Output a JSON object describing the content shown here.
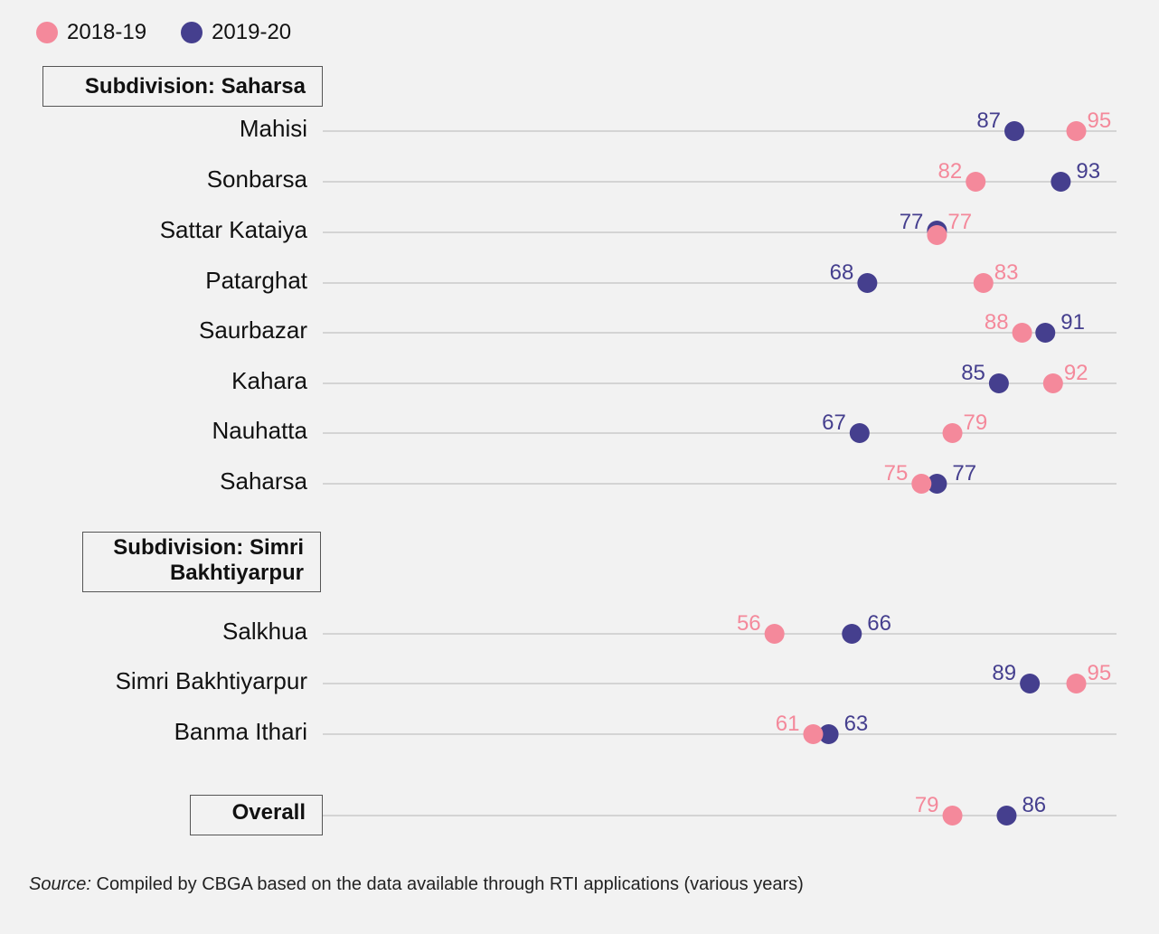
{
  "legend": [
    {
      "label": "2018-19",
      "color": "#f4899b"
    },
    {
      "label": "2019-20",
      "color": "#453f8e"
    }
  ],
  "sections": [
    {
      "label": "Subdivision: Saharsa"
    },
    {
      "label": "Subdivision: Simri Bakhtiyarpur"
    },
    {
      "label": "Overall"
    }
  ],
  "chart_data": {
    "type": "scatter",
    "series": [
      {
        "name": "2018-19",
        "color": "#f4899b"
      },
      {
        "name": "2019-20",
        "color": "#453f8e"
      }
    ],
    "categories": [
      "Mahisi",
      "Sonbarsa",
      "Sattar Kataiya",
      "Patarghat",
      "Saurbazar",
      "Kahara",
      "Nauhatta",
      "Saharsa",
      "Salkhua",
      "Simri Bakhtiyarpur",
      "Banma Ithari",
      "Overall"
    ],
    "values_2018_19": [
      95,
      82,
      77,
      83,
      88,
      92,
      79,
      75,
      56,
      95,
      61,
      79
    ],
    "values_2019_20": [
      87,
      93,
      77,
      68,
      91,
      85,
      67,
      77,
      66,
      89,
      63,
      86
    ],
    "category_labels_shown": [
      true,
      true,
      true,
      true,
      true,
      true,
      true,
      true,
      true,
      true,
      true,
      false
    ],
    "xlim": [
      0,
      100
    ],
    "grid": true
  },
  "source": {
    "prefix": "Source:",
    "text": " Compiled by CBGA based on the data available through RTI applications (various years)"
  }
}
